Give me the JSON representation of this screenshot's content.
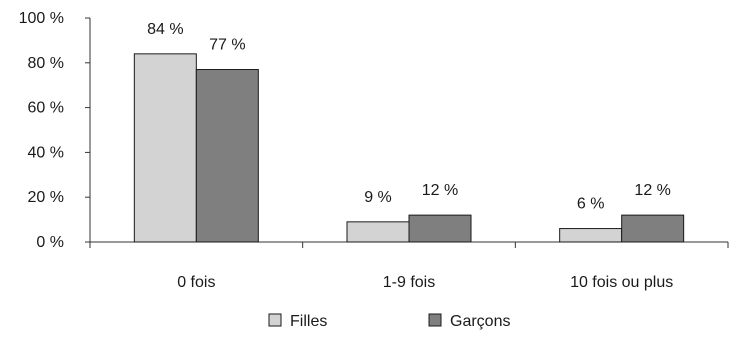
{
  "chart_data": {
    "type": "bar",
    "categories": [
      "0  fois",
      "1-9  fois",
      "10  fois  ou  plus"
    ],
    "series": [
      {
        "name": "Filles",
        "values": [
          84,
          9,
          6
        ],
        "labels": [
          "84  %",
          "9 %",
          "6 %"
        ],
        "color": "#d3d3d3"
      },
      {
        "name": "Garçons",
        "values": [
          77,
          12,
          12
        ],
        "labels": [
          "77  %",
          "12 %",
          "12 %"
        ],
        "color": "#7f7f80"
      }
    ],
    "y_ticks": [
      {
        "value": 0,
        "label": "0 %"
      },
      {
        "value": 20,
        "label": "20 %"
      },
      {
        "value": 40,
        "label": "40 %"
      },
      {
        "value": 60,
        "label": "60 %"
      },
      {
        "value": 80,
        "label": "80 %"
      },
      {
        "value": 100,
        "label": "100 %"
      }
    ],
    "ylim": [
      0,
      100
    ],
    "grid": false,
    "legend_position": "bottom-center",
    "title": "",
    "xlabel": "",
    "ylabel": ""
  }
}
